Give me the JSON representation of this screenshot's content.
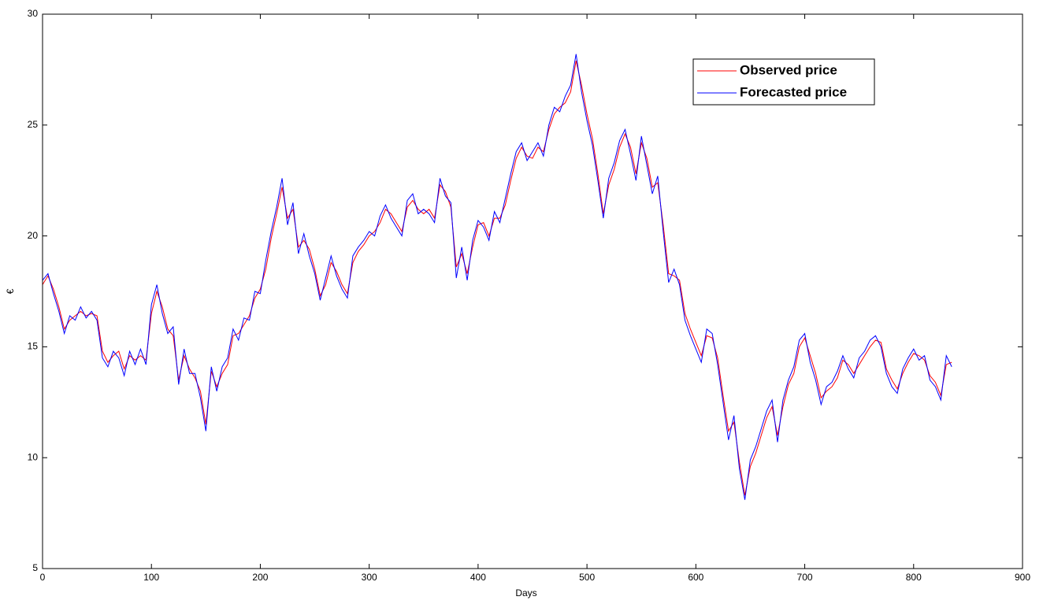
{
  "chart_data": {
    "type": "line",
    "xlabel": "Days",
    "ylabel": "€",
    "xlim": [
      0,
      900
    ],
    "xticks": [
      0,
      100,
      200,
      300,
      400,
      500,
      600,
      700,
      800,
      900
    ],
    "ylim": [
      5,
      30
    ],
    "yticks": [
      5,
      10,
      15,
      20,
      25,
      30
    ],
    "legend": "upper right",
    "x": [
      0,
      5,
      10,
      15,
      20,
      25,
      30,
      35,
      40,
      45,
      50,
      55,
      60,
      65,
      70,
      75,
      80,
      85,
      90,
      95,
      100,
      105,
      110,
      115,
      120,
      125,
      130,
      135,
      140,
      145,
      150,
      155,
      160,
      165,
      170,
      175,
      180,
      185,
      190,
      195,
      200,
      205,
      210,
      215,
      220,
      225,
      230,
      235,
      240,
      245,
      250,
      255,
      260,
      265,
      270,
      275,
      280,
      285,
      290,
      295,
      300,
      305,
      310,
      315,
      320,
      325,
      330,
      335,
      340,
      345,
      350,
      355,
      360,
      365,
      370,
      375,
      380,
      385,
      390,
      395,
      400,
      405,
      410,
      415,
      420,
      425,
      430,
      435,
      440,
      445,
      450,
      455,
      460,
      465,
      470,
      475,
      480,
      485,
      490,
      495,
      500,
      505,
      510,
      515,
      520,
      525,
      530,
      535,
      540,
      545,
      550,
      555,
      560,
      565,
      570,
      575,
      580,
      585,
      590,
      595,
      600,
      605,
      610,
      615,
      620,
      625,
      630,
      635,
      640,
      645,
      650,
      655,
      660,
      665,
      670,
      675,
      680,
      685,
      690,
      695,
      700,
      705,
      710,
      715,
      720,
      725,
      730,
      735,
      740,
      745,
      750,
      755,
      760,
      765,
      770,
      775,
      780,
      785,
      790,
      795,
      800,
      805,
      810,
      815,
      820,
      825,
      830,
      835
    ],
    "series": [
      {
        "name": "Observed price",
        "color": "#ff0000",
        "values": [
          17.8,
          18.2,
          17.6,
          16.8,
          15.8,
          16.2,
          16.4,
          16.6,
          16.4,
          16.5,
          16.4,
          14.8,
          14.3,
          14.6,
          14.8,
          14.0,
          14.6,
          14.4,
          14.6,
          14.4,
          16.5,
          17.5,
          16.8,
          15.8,
          15.5,
          13.5,
          14.6,
          14.0,
          13.6,
          13.0,
          11.5,
          13.9,
          13.2,
          13.8,
          14.2,
          15.5,
          15.6,
          16.0,
          16.4,
          17.2,
          17.6,
          18.5,
          19.9,
          21.0,
          22.2,
          20.8,
          21.2,
          19.5,
          19.8,
          19.4,
          18.5,
          17.3,
          17.8,
          18.8,
          18.4,
          17.8,
          17.4,
          18.8,
          19.3,
          19.6,
          20.0,
          20.2,
          20.6,
          21.2,
          21.0,
          20.6,
          20.2,
          21.3,
          21.6,
          21.2,
          21.0,
          21.2,
          20.8,
          22.3,
          22.0,
          21.3,
          18.6,
          19.2,
          18.3,
          19.5,
          20.5,
          20.6,
          20.0,
          20.8,
          20.8,
          21.4,
          22.5,
          23.5,
          24.0,
          23.6,
          23.5,
          24.0,
          23.8,
          24.8,
          25.5,
          25.8,
          26.0,
          26.5,
          27.9,
          26.8,
          25.5,
          24.4,
          22.8,
          21.0,
          22.3,
          23.0,
          24.0,
          24.6,
          24.0,
          22.8,
          24.2,
          23.5,
          22.2,
          22.4,
          20.5,
          18.3,
          18.2,
          18.0,
          16.5,
          15.8,
          15.2,
          14.6,
          15.5,
          15.4,
          14.5,
          12.8,
          11.2,
          11.6,
          9.8,
          8.3,
          9.6,
          10.2,
          11.0,
          11.8,
          12.3,
          11.0,
          12.3,
          13.3,
          13.8,
          15.0,
          15.4,
          14.6,
          13.8,
          12.7,
          13.0,
          13.2,
          13.6,
          14.4,
          14.2,
          13.8,
          14.2,
          14.6,
          15.0,
          15.3,
          15.2,
          14.0,
          13.5,
          13.1,
          13.8,
          14.3,
          14.7,
          14.6,
          14.4,
          13.7,
          13.4,
          12.8,
          14.2,
          14.3
        ]
      },
      {
        "name": "Forecasted price",
        "color": "#0000ff",
        "values": [
          18.0,
          18.3,
          17.4,
          16.6,
          15.6,
          16.4,
          16.2,
          16.8,
          16.3,
          16.6,
          16.2,
          14.5,
          14.1,
          14.8,
          14.5,
          13.7,
          14.8,
          14.2,
          14.9,
          14.2,
          16.9,
          17.8,
          16.5,
          15.6,
          15.9,
          13.3,
          14.9,
          13.8,
          13.8,
          12.7,
          11.2,
          14.1,
          13.0,
          14.1,
          14.5,
          15.8,
          15.3,
          16.3,
          16.2,
          17.5,
          17.4,
          18.9,
          20.2,
          21.3,
          22.6,
          20.5,
          21.5,
          19.2,
          20.1,
          19.1,
          18.3,
          17.1,
          18.1,
          19.1,
          18.2,
          17.6,
          17.2,
          19.1,
          19.5,
          19.8,
          20.2,
          20.0,
          20.9,
          21.4,
          20.8,
          20.4,
          20.0,
          21.6,
          21.9,
          21.0,
          21.2,
          21.0,
          20.6,
          22.6,
          21.8,
          21.5,
          18.1,
          19.5,
          18.0,
          19.8,
          20.7,
          20.4,
          19.8,
          21.1,
          20.6,
          21.7,
          22.8,
          23.8,
          24.2,
          23.4,
          23.8,
          24.2,
          23.6,
          25.0,
          25.8,
          25.6,
          26.3,
          26.8,
          28.2,
          26.5,
          25.2,
          24.1,
          22.5,
          20.8,
          22.6,
          23.3,
          24.3,
          24.8,
          23.7,
          22.5,
          24.5,
          23.2,
          21.9,
          22.7,
          20.2,
          17.9,
          18.5,
          17.8,
          16.2,
          15.5,
          14.9,
          14.3,
          15.8,
          15.6,
          14.2,
          12.5,
          10.8,
          11.9,
          9.5,
          8.1,
          9.9,
          10.5,
          11.3,
          12.1,
          12.6,
          10.7,
          12.6,
          13.5,
          14.1,
          15.3,
          15.6,
          14.3,
          13.5,
          12.4,
          13.2,
          13.4,
          13.9,
          14.6,
          14.0,
          13.6,
          14.5,
          14.8,
          15.3,
          15.5,
          15.0,
          13.8,
          13.2,
          12.9,
          14.0,
          14.5,
          14.9,
          14.4,
          14.6,
          13.5,
          13.2,
          12.6,
          14.6,
          14.1
        ]
      }
    ]
  }
}
